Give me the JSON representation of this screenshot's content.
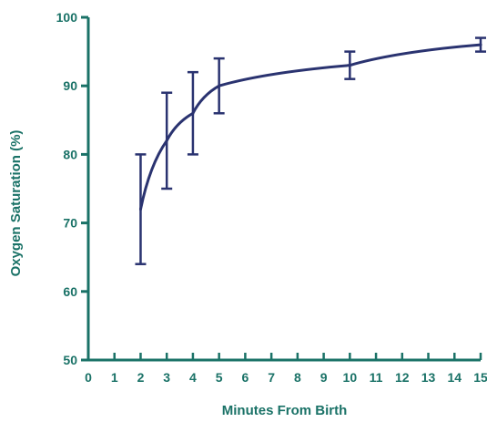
{
  "colors": {
    "axis": "#1a7267",
    "series": "#2a3370",
    "text": "#1a7267",
    "background": "#ffffff"
  },
  "chart_data": {
    "type": "line",
    "title": "",
    "xlabel": "Minutes From Birth",
    "ylabel": "Oxygen Saturation (%)",
    "xlim": [
      0,
      15
    ],
    "ylim": [
      50,
      100
    ],
    "x_ticks": [
      0,
      1,
      2,
      3,
      4,
      5,
      6,
      7,
      8,
      9,
      10,
      11,
      12,
      13,
      14,
      15
    ],
    "y_ticks": [
      50,
      60,
      70,
      80,
      90,
      100
    ],
    "grid": false,
    "series": [
      {
        "x": [
          2,
          3,
          4,
          5,
          10,
          15
        ],
        "y": [
          72,
          82,
          86,
          90,
          93,
          96
        ],
        "err_low": [
          64,
          75,
          80,
          86,
          91,
          95
        ],
        "err_high": [
          80,
          89,
          92,
          94,
          95,
          97
        ]
      }
    ]
  }
}
